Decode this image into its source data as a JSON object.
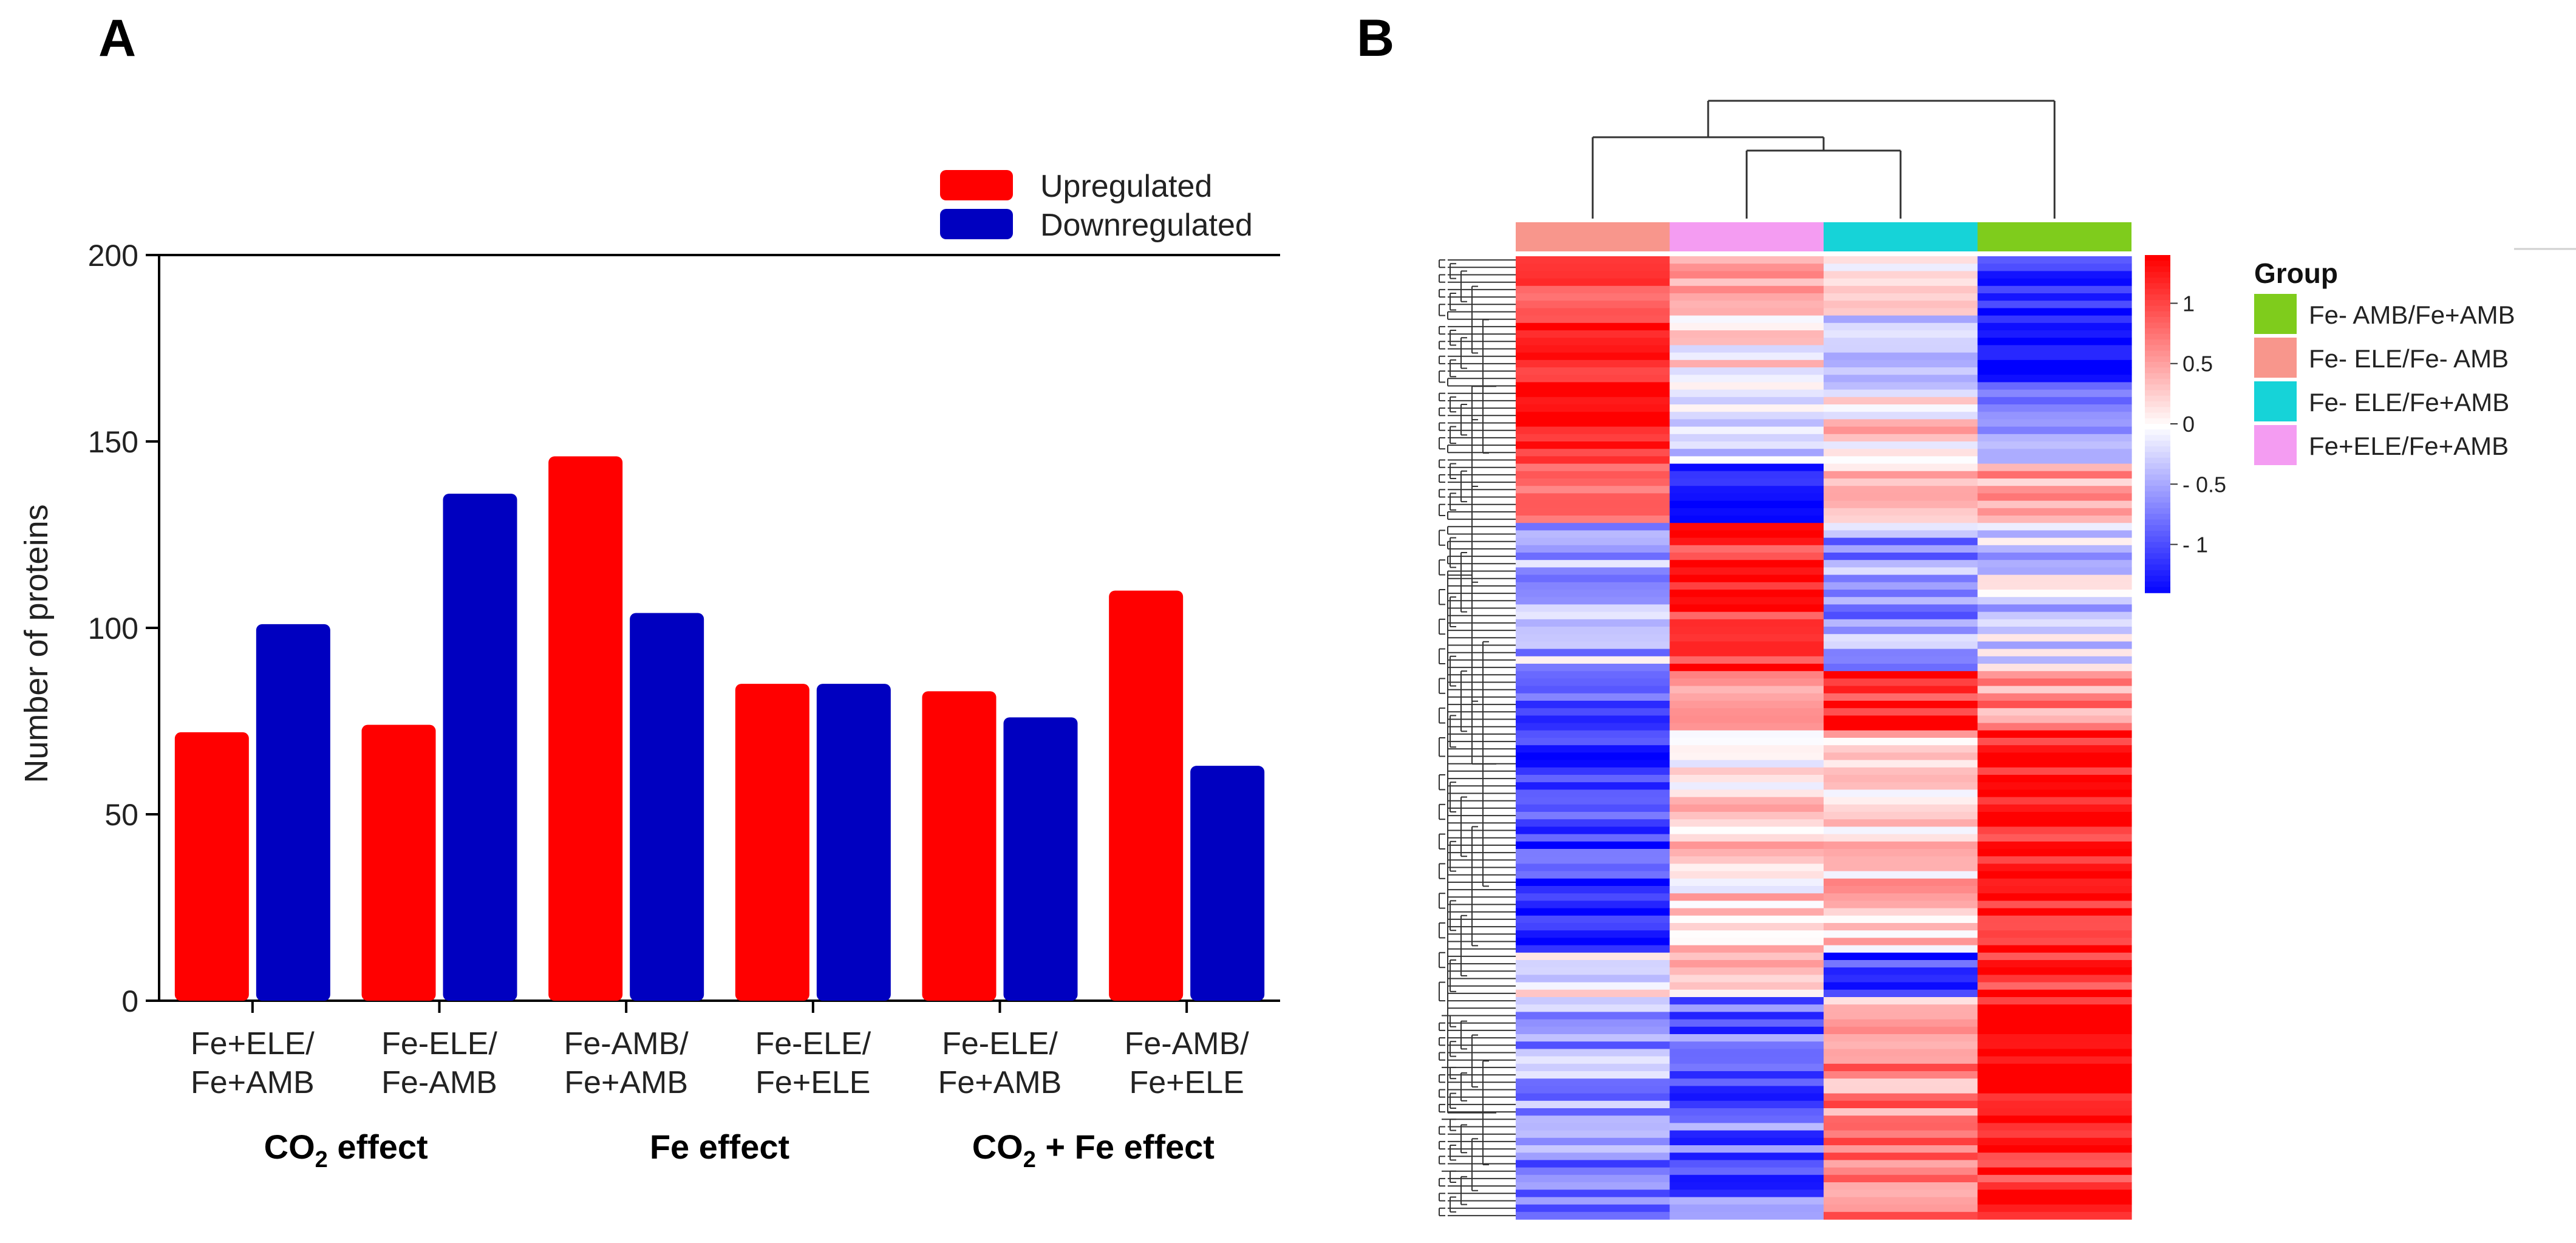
{
  "panel_labels": {
    "a": "A",
    "b": "B"
  },
  "colors": {
    "up": "#ff0000",
    "down": "#0000c0",
    "hm_high": "#ff0000",
    "hm_mid": "#ffffff",
    "hm_low": "#0000ff",
    "group_fe_minus_amb_fe_plus_amb": "#7fcc1c",
    "group_fe_minus_ele_fe_minus_amb": "#f8968c",
    "group_fe_minus_ele_fe_plus_amb": "#16d3d8",
    "group_fe_plus_ele_fe_plus_amb": "#f49cf2"
  },
  "chart_data": [
    {
      "type": "bar",
      "title": "",
      "xlabel": "",
      "ylabel": "Number of proteins",
      "ylim": [
        0,
        200
      ],
      "yticks": [
        "0",
        "50",
        "100",
        "150",
        "200"
      ],
      "categories": [
        [
          "Fe+ELE/",
          "Fe+AMB"
        ],
        [
          "Fe-ELE/",
          "Fe-AMB"
        ],
        [
          "Fe-AMB/",
          "Fe+AMB"
        ],
        [
          "Fe-ELE/",
          "Fe+ELE"
        ],
        [
          "Fe-ELE/",
          "Fe+AMB"
        ],
        [
          "Fe-AMB/",
          "Fe+ELE"
        ]
      ],
      "series": [
        {
          "name": "Upregulated",
          "values": [
            72,
            74,
            146,
            85,
            83,
            110
          ]
        },
        {
          "name": "Downregulated",
          "values": [
            101,
            136,
            104,
            85,
            76,
            63
          ]
        }
      ],
      "legend_position": "top-right",
      "groups": [
        {
          "label": "CO",
          "sub": "2",
          "suffix": " effect",
          "categories": [
            0,
            1
          ]
        },
        {
          "label": "Fe effect",
          "sub": "",
          "suffix": "",
          "categories": [
            2,
            3
          ]
        },
        {
          "label": "CO",
          "sub": "2",
          "suffix": " + Fe effect",
          "categories": [
            4,
            5
          ]
        }
      ]
    },
    {
      "type": "heatmap",
      "title": "",
      "columns": [
        "Fe- ELE/Fe- AMB",
        "Fe+ELE/Fe+AMB",
        "Fe- ELE/Fe+AMB",
        "Fe- AMB/Fe+AMB"
      ],
      "n_rows": 130,
      "legend_title": "Group",
      "legend_entries": [
        "Fe- AMB/Fe+AMB",
        "Fe- ELE/Fe- AMB",
        "Fe- ELE/Fe+AMB",
        "Fe+ELE/Fe+AMB"
      ],
      "colorbar_range": [
        -1.4,
        1.4
      ],
      "colorbar_ticks": [
        {
          "value": 1,
          "label": "1"
        },
        {
          "value": 0.5,
          "label": "0.5"
        },
        {
          "value": 0,
          "label": "0"
        },
        {
          "value": -0.5,
          "label": "- 0.5"
        },
        {
          "value": -1,
          "label": "- 1"
        }
      ],
      "row_blocks": [
        {
          "rows": 8,
          "values": [
            1.0,
            0.5,
            0.1,
            -1.2
          ],
          "noise": 0.3
        },
        {
          "rows": 10,
          "values": [
            1.2,
            0.1,
            -0.4,
            -1.1
          ],
          "noise": 0.4
        },
        {
          "rows": 10,
          "values": [
            1.3,
            -0.3,
            0.2,
            -0.7
          ],
          "noise": 0.4
        },
        {
          "rows": 8,
          "values": [
            0.8,
            -1.3,
            0.4,
            0.5
          ],
          "noise": 0.3
        },
        {
          "rows": 20,
          "values": [
            -0.4,
            1.3,
            -0.6,
            -0.3
          ],
          "noise": 0.5
        },
        {
          "rows": 8,
          "values": [
            -1.0,
            0.3,
            1.2,
            0.6
          ],
          "noise": 0.4
        },
        {
          "rows": 30,
          "values": [
            -1.1,
            0.2,
            0.3,
            1.3
          ],
          "noise": 0.4
        },
        {
          "rows": 6,
          "values": [
            0.0,
            0.4,
            -1.0,
            1.2
          ],
          "noise": 0.4
        },
        {
          "rows": 30,
          "values": [
            -0.6,
            -0.8,
            0.6,
            1.3
          ],
          "noise": 0.5
        }
      ]
    }
  ]
}
